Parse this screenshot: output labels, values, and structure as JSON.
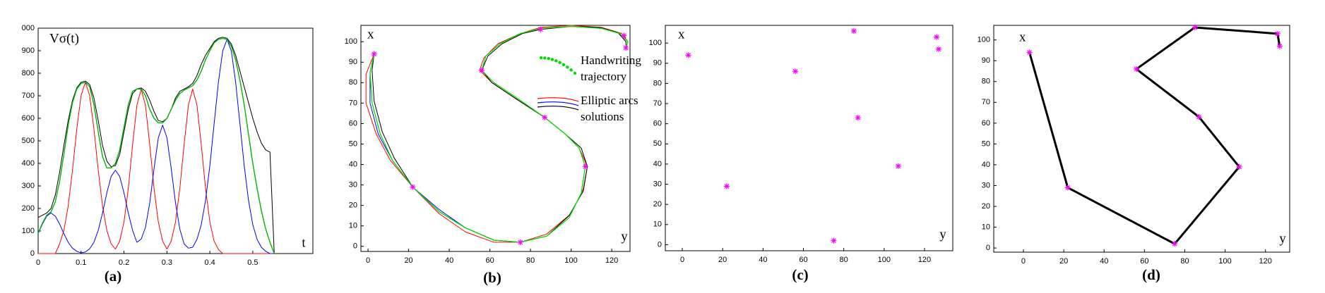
{
  "chart_data": [
    {
      "type": "line",
      "y_label": "Vσ(t)",
      "x_label": "t",
      "panel_label": "(a)",
      "x": [
        0,
        0.01,
        0.02,
        0.03,
        0.04,
        0.05,
        0.06,
        0.07,
        0.08,
        0.09,
        0.1,
        0.11,
        0.12,
        0.13,
        0.14,
        0.15,
        0.16,
        0.17,
        0.18,
        0.19,
        0.2,
        0.21,
        0.22,
        0.23,
        0.24,
        0.25,
        0.26,
        0.27,
        0.28,
        0.29,
        0.3,
        0.31,
        0.32,
        0.33,
        0.34,
        0.35,
        0.36,
        0.37,
        0.38,
        0.39,
        0.4,
        0.41,
        0.42,
        0.43,
        0.44,
        0.45,
        0.46,
        0.47,
        0.48,
        0.49,
        0.5,
        0.51,
        0.52,
        0.53,
        0.54,
        0.55
      ],
      "series": [
        {
          "color": "#ff0000",
          "width": 1,
          "values": [
            0,
            0,
            0,
            0,
            0,
            43,
            103,
            211,
            370,
            552,
            701,
            760,
            701,
            552,
            370,
            211,
            103,
            43,
            20,
            55,
            140,
            288,
            483,
            658,
            730,
            658,
            483,
            288,
            140,
            55,
            20,
            55,
            140,
            288,
            483,
            658,
            730,
            658,
            483,
            288,
            140,
            55,
            18,
            0,
            0,
            0,
            0,
            0,
            0,
            0,
            0,
            0,
            0,
            0,
            0,
            0
          ]
        },
        {
          "color": "#0000ff",
          "width": 1,
          "values": [
            88,
            131,
            166,
            180,
            166,
            131,
            88,
            50,
            24,
            10,
            3,
            7,
            21,
            50,
            103,
            180,
            269,
            342,
            370,
            342,
            269,
            180,
            103,
            50,
            64,
            116,
            225,
            377,
            514,
            570,
            514,
            377,
            225,
            109,
            43,
            24,
            28,
            63,
            128,
            237,
            390,
            577,
            761,
            899,
            950,
            899,
            761,
            577,
            390,
            237,
            128,
            63,
            28,
            10,
            0,
            0
          ]
        },
        {
          "color": "#000000",
          "width": 1,
          "values": [
            160,
            170,
            180,
            200,
            260,
            360,
            480,
            590,
            680,
            735,
            760,
            765,
            750,
            690,
            590,
            480,
            410,
            385,
            390,
            440,
            540,
            640,
            710,
            730,
            735,
            720,
            680,
            630,
            590,
            585,
            600,
            640,
            690,
            720,
            730,
            740,
            755,
            790,
            840,
            880,
            910,
            940,
            955,
            960,
            955,
            930,
            880,
            810,
            740,
            670,
            600,
            540,
            490,
            460,
            450,
            0
          ]
        },
        {
          "color": "#00b400",
          "width": 1.4,
          "values": [
            90,
            135,
            170,
            185,
            230,
            320,
            440,
            570,
            670,
            730,
            755,
            760,
            740,
            660,
            540,
            430,
            380,
            380,
            400,
            460,
            560,
            660,
            720,
            730,
            730,
            700,
            640,
            600,
            580,
            580,
            600,
            640,
            680,
            710,
            725,
            735,
            745,
            770,
            810,
            860,
            900,
            935,
            950,
            955,
            950,
            920,
            860,
            770,
            660,
            530,
            400,
            290,
            190,
            110,
            50,
            0
          ]
        }
      ],
      "xlim": [
        0,
        0.64
      ],
      "ylim": [
        0,
        1000
      ],
      "xticks": [
        0,
        0.1,
        0.2,
        0.3,
        0.4,
        0.5
      ],
      "yticks": [
        0,
        100,
        200,
        300,
        400,
        500,
        600,
        700,
        800,
        900,
        {
          "value": 1000,
          "label": "000"
        }
      ]
    },
    {
      "type": "line",
      "y_label": "x",
      "x_label": "y",
      "panel_label": "(b)",
      "legend": [
        {
          "lines": [
            "Handwriting",
            "trajectory"
          ],
          "colors": [
            "#00dd00"
          ],
          "style": "dotted"
        },
        {
          "lines": [
            "Elliptic arcs",
            "solutions"
          ],
          "colors": [
            "#ff0000",
            "#0000ff",
            "#000000"
          ],
          "style": "solid"
        }
      ],
      "series": [
        {
          "color": "#ff0000",
          "width": 1,
          "x": [
            3,
            -1,
            -1,
            4,
            11,
            22,
            35,
            48,
            62,
            75,
            88,
            100,
            106,
            108,
            104,
            97,
            87,
            73,
            61,
            55,
            57,
            64,
            75,
            85,
            100,
            115,
            125,
            128,
            127
          ],
          "values": [
            94,
            84,
            70,
            55,
            42,
            29,
            16,
            7,
            2,
            2,
            6,
            16,
            28,
            39,
            48,
            55,
            63,
            72,
            80,
            86,
            92,
            99,
            104,
            107,
            108,
            107,
            104,
            100,
            97
          ]
        },
        {
          "color": "#0000ff",
          "width": 1,
          "x": [
            3,
            1,
            1,
            5,
            12,
            22,
            35,
            48,
            62,
            75
          ],
          "values": [
            94,
            85,
            70,
            55,
            42,
            29,
            18,
            9,
            3,
            2
          ]
        },
        {
          "color": "#000000",
          "width": 1,
          "x": [
            3,
            2,
            3,
            7,
            13,
            22,
            35,
            48,
            62,
            75,
            88,
            99,
            106,
            108,
            105,
            97,
            87,
            73,
            61,
            56,
            59,
            66,
            76,
            85,
            100,
            114,
            123,
            127,
            127
          ],
          "values": [
            94,
            86,
            71,
            56,
            43,
            29,
            17,
            9,
            3,
            2,
            5,
            15,
            27,
            39,
            48,
            55,
            63,
            72,
            80,
            86,
            93,
            99,
            104,
            106,
            107.5,
            107,
            104.5,
            100,
            97
          ]
        },
        {
          "color": "#00dd00",
          "width": 1.3,
          "x": [
            3,
            1,
            2,
            6,
            12,
            22,
            35,
            48,
            62,
            75,
            88,
            99,
            105,
            107,
            104,
            97,
            87,
            74,
            62,
            56,
            58,
            65,
            75,
            85,
            100,
            115,
            124,
            128,
            127
          ],
          "values": [
            94,
            85,
            70,
            55,
            42,
            29,
            17,
            9,
            3,
            2,
            5,
            14,
            26,
            39,
            48,
            55,
            63,
            72,
            80,
            86,
            93,
            99,
            104,
            106.5,
            107.5,
            106.5,
            104,
            100,
            97
          ]
        },
        {
          "color": "#ff00ff",
          "marker": "star",
          "x": [
            3,
            22,
            56,
            75,
            85,
            87,
            107,
            126,
            127
          ],
          "values": [
            94,
            29,
            86,
            2,
            106,
            63,
            39,
            103,
            97
          ]
        }
      ],
      "xlim": [
        -3.5,
        129
      ],
      "ylim": [
        -2.5,
        108
      ],
      "xticks": [
        0,
        20,
        40,
        60,
        80,
        100,
        120
      ],
      "yticks": [
        0,
        10,
        20,
        30,
        40,
        50,
        60,
        70,
        80,
        90,
        100
      ]
    },
    {
      "type": "scatter",
      "y_label": "x",
      "x_label": "y",
      "panel_label": "(c)",
      "series": [
        {
          "color": "#ff00ff",
          "marker": "star",
          "x": [
            3,
            22,
            56,
            75,
            85,
            87,
            107,
            126,
            127
          ],
          "values": [
            94,
            29,
            86,
            2,
            106,
            63,
            39,
            103,
            97
          ]
        }
      ],
      "xlim": [
        -8.4,
        134
      ],
      "ylim": [
        -3,
        108.8
      ],
      "xticks": [
        0,
        20,
        40,
        60,
        80,
        100,
        120
      ],
      "yticks": [
        0,
        10,
        20,
        30,
        40,
        50,
        60,
        70,
        80,
        90,
        100
      ]
    },
    {
      "type": "line",
      "y_label": "x",
      "x_label": "y",
      "panel_label": "(d)",
      "series": [
        {
          "color": "#000000",
          "width": 3,
          "x": [
            3,
            22,
            75,
            107,
            87,
            56,
            85,
            126,
            127
          ],
          "values": [
            94,
            29,
            2,
            39,
            63,
            86,
            106,
            103,
            97
          ]
        },
        {
          "color": "#ff00ff",
          "marker": "star",
          "x": [
            3,
            22,
            75,
            107,
            87,
            56,
            85,
            126,
            127
          ],
          "values": [
            94,
            29,
            2,
            39,
            63,
            86,
            106,
            103,
            97
          ]
        }
      ],
      "xlim": [
        -14.7,
        132
      ],
      "ylim": [
        -2,
        107
      ],
      "xticks": [
        0,
        20,
        40,
        60,
        80,
        100,
        120
      ],
      "yticks": [
        0,
        10,
        20,
        30,
        40,
        50,
        60,
        70,
        80,
        90,
        100
      ]
    }
  ]
}
